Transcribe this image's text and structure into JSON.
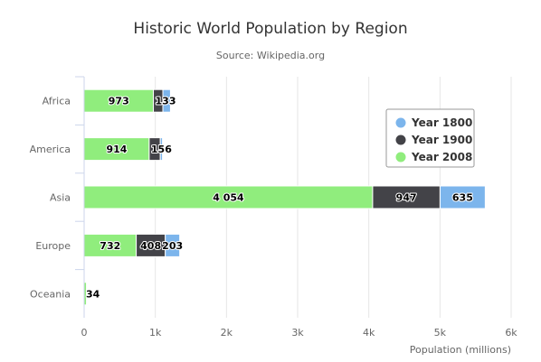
{
  "chart_data": {
    "type": "bar",
    "orientation": "horizontal",
    "stacked": true,
    "title": "Historic World Population by Region",
    "subtitle": "Source: Wikipedia.org",
    "categories": [
      "Africa",
      "America",
      "Asia",
      "Europe",
      "Oceania"
    ],
    "series": [
      {
        "name": "Year 1800",
        "color": "#7cb5ec",
        "values": [
          107,
          31,
          635,
          203,
          2
        ]
      },
      {
        "name": "Year 1900",
        "color": "#434348",
        "values": [
          133,
          156,
          947,
          408,
          6
        ]
      },
      {
        "name": "Year 2008",
        "color": "#90ed7d",
        "values": [
          973,
          914,
          4054,
          732,
          34
        ]
      }
    ],
    "stack_order_from_axis": [
      "Year 2008",
      "Year 1900",
      "Year 1800"
    ],
    "xlabel": "Population (millions)",
    "xlim": [
      0,
      6000
    ],
    "x_ticks": [
      "0",
      "1k",
      "2k",
      "3k",
      "4k",
      "5k",
      "6k"
    ],
    "visible_data_labels": {
      "Year 1800": [
        "",
        "",
        "635",
        "203",
        ""
      ],
      "Year 1900": [
        "133",
        "156",
        "947",
        "408",
        ""
      ],
      "Year 2008": [
        "973",
        "914",
        "4 054",
        "732",
        "34"
      ]
    },
    "grid": "vertical",
    "legend_position": "top-right"
  }
}
